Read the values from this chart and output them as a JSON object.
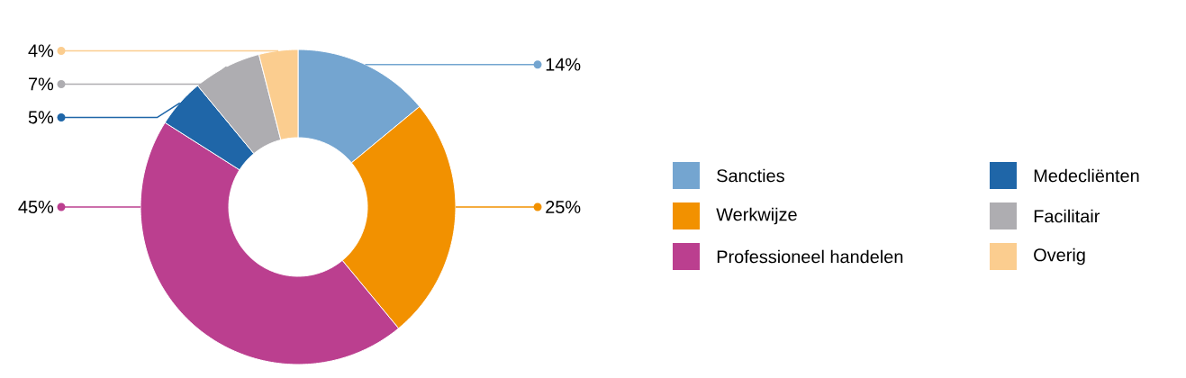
{
  "chart_data": {
    "type": "donut",
    "categories": [
      "Sancties",
      "Werkwijze",
      "Professioneel handelen",
      "Medecliënten",
      "Facilitair",
      "Overig"
    ],
    "values": [
      14,
      25,
      45,
      5,
      7,
      4
    ],
    "colors": [
      "#74a5d0",
      "#f29100",
      "#bb3f8f",
      "#1f66a8",
      "#aeadb1",
      "#fbcd8f"
    ],
    "value_labels": [
      "14%",
      "25%",
      "45%",
      "5%",
      "7%",
      "4%"
    ],
    "legend": "right"
  }
}
